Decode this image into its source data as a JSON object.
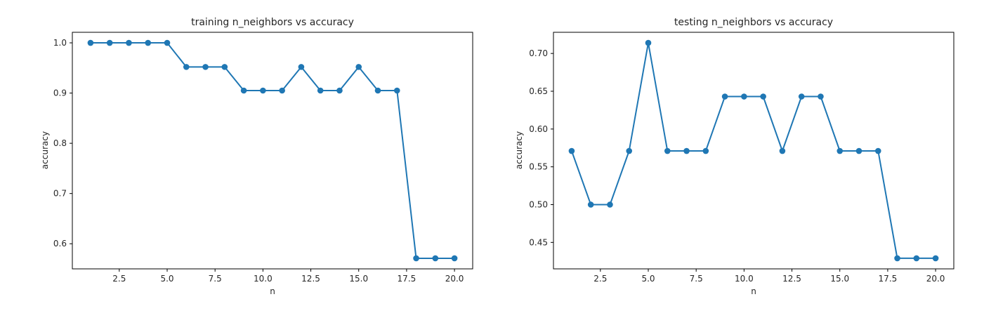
{
  "chart_data": [
    {
      "type": "line",
      "title": "training n_neighbors vs accuracy",
      "xlabel": "n",
      "ylabel": "accuracy",
      "x": [
        1,
        2,
        3,
        4,
        5,
        6,
        7,
        8,
        9,
        10,
        11,
        12,
        13,
        14,
        15,
        16,
        17,
        18,
        19,
        20
      ],
      "series": [
        {
          "values": [
            1.0,
            1.0,
            1.0,
            1.0,
            1.0,
            0.952,
            0.952,
            0.952,
            0.905,
            0.905,
            0.905,
            0.952,
            0.905,
            0.905,
            0.952,
            0.905,
            0.905,
            0.571,
            0.571,
            0.571
          ]
        }
      ],
      "xticks": [
        2.5,
        5.0,
        7.5,
        10.0,
        12.5,
        15.0,
        17.5,
        20.0
      ],
      "xtick_labels": [
        "2.5",
        "5.0",
        "7.5",
        "10.0",
        "12.5",
        "15.0",
        "17.5",
        "20.0"
      ],
      "yticks": [
        0.6,
        0.7,
        0.8,
        0.9,
        1.0
      ],
      "ytick_labels": [
        "0.6",
        "0.7",
        "0.8",
        "0.9",
        "1.0"
      ],
      "xlim": [
        0.05,
        20.95
      ],
      "ylim": [
        0.55,
        1.021
      ],
      "grid": false,
      "color": "#1f77b4"
    },
    {
      "type": "line",
      "title": "testing n_neighbors vs accuracy",
      "xlabel": "n",
      "ylabel": "accuracy",
      "x": [
        1,
        2,
        3,
        4,
        5,
        6,
        7,
        8,
        9,
        10,
        11,
        12,
        13,
        14,
        15,
        16,
        17,
        18,
        19,
        20
      ],
      "series": [
        {
          "values": [
            0.571,
            0.5,
            0.5,
            0.571,
            0.714,
            0.571,
            0.571,
            0.571,
            0.643,
            0.643,
            0.643,
            0.571,
            0.643,
            0.643,
            0.571,
            0.571,
            0.571,
            0.429,
            0.429,
            0.429
          ]
        }
      ],
      "xticks": [
        2.5,
        5.0,
        7.5,
        10.0,
        12.5,
        15.0,
        17.5,
        20.0
      ],
      "xtick_labels": [
        "2.5",
        "5.0",
        "7.5",
        "10.0",
        "12.5",
        "15.0",
        "17.5",
        "20.0"
      ],
      "yticks": [
        0.45,
        0.5,
        0.55,
        0.6,
        0.65,
        0.7
      ],
      "ytick_labels": [
        "0.45",
        "0.50",
        "0.55",
        "0.60",
        "0.65",
        "0.70"
      ],
      "xlim": [
        0.05,
        20.95
      ],
      "ylim": [
        0.415,
        0.728
      ],
      "grid": false,
      "color": "#1f77b4"
    }
  ]
}
